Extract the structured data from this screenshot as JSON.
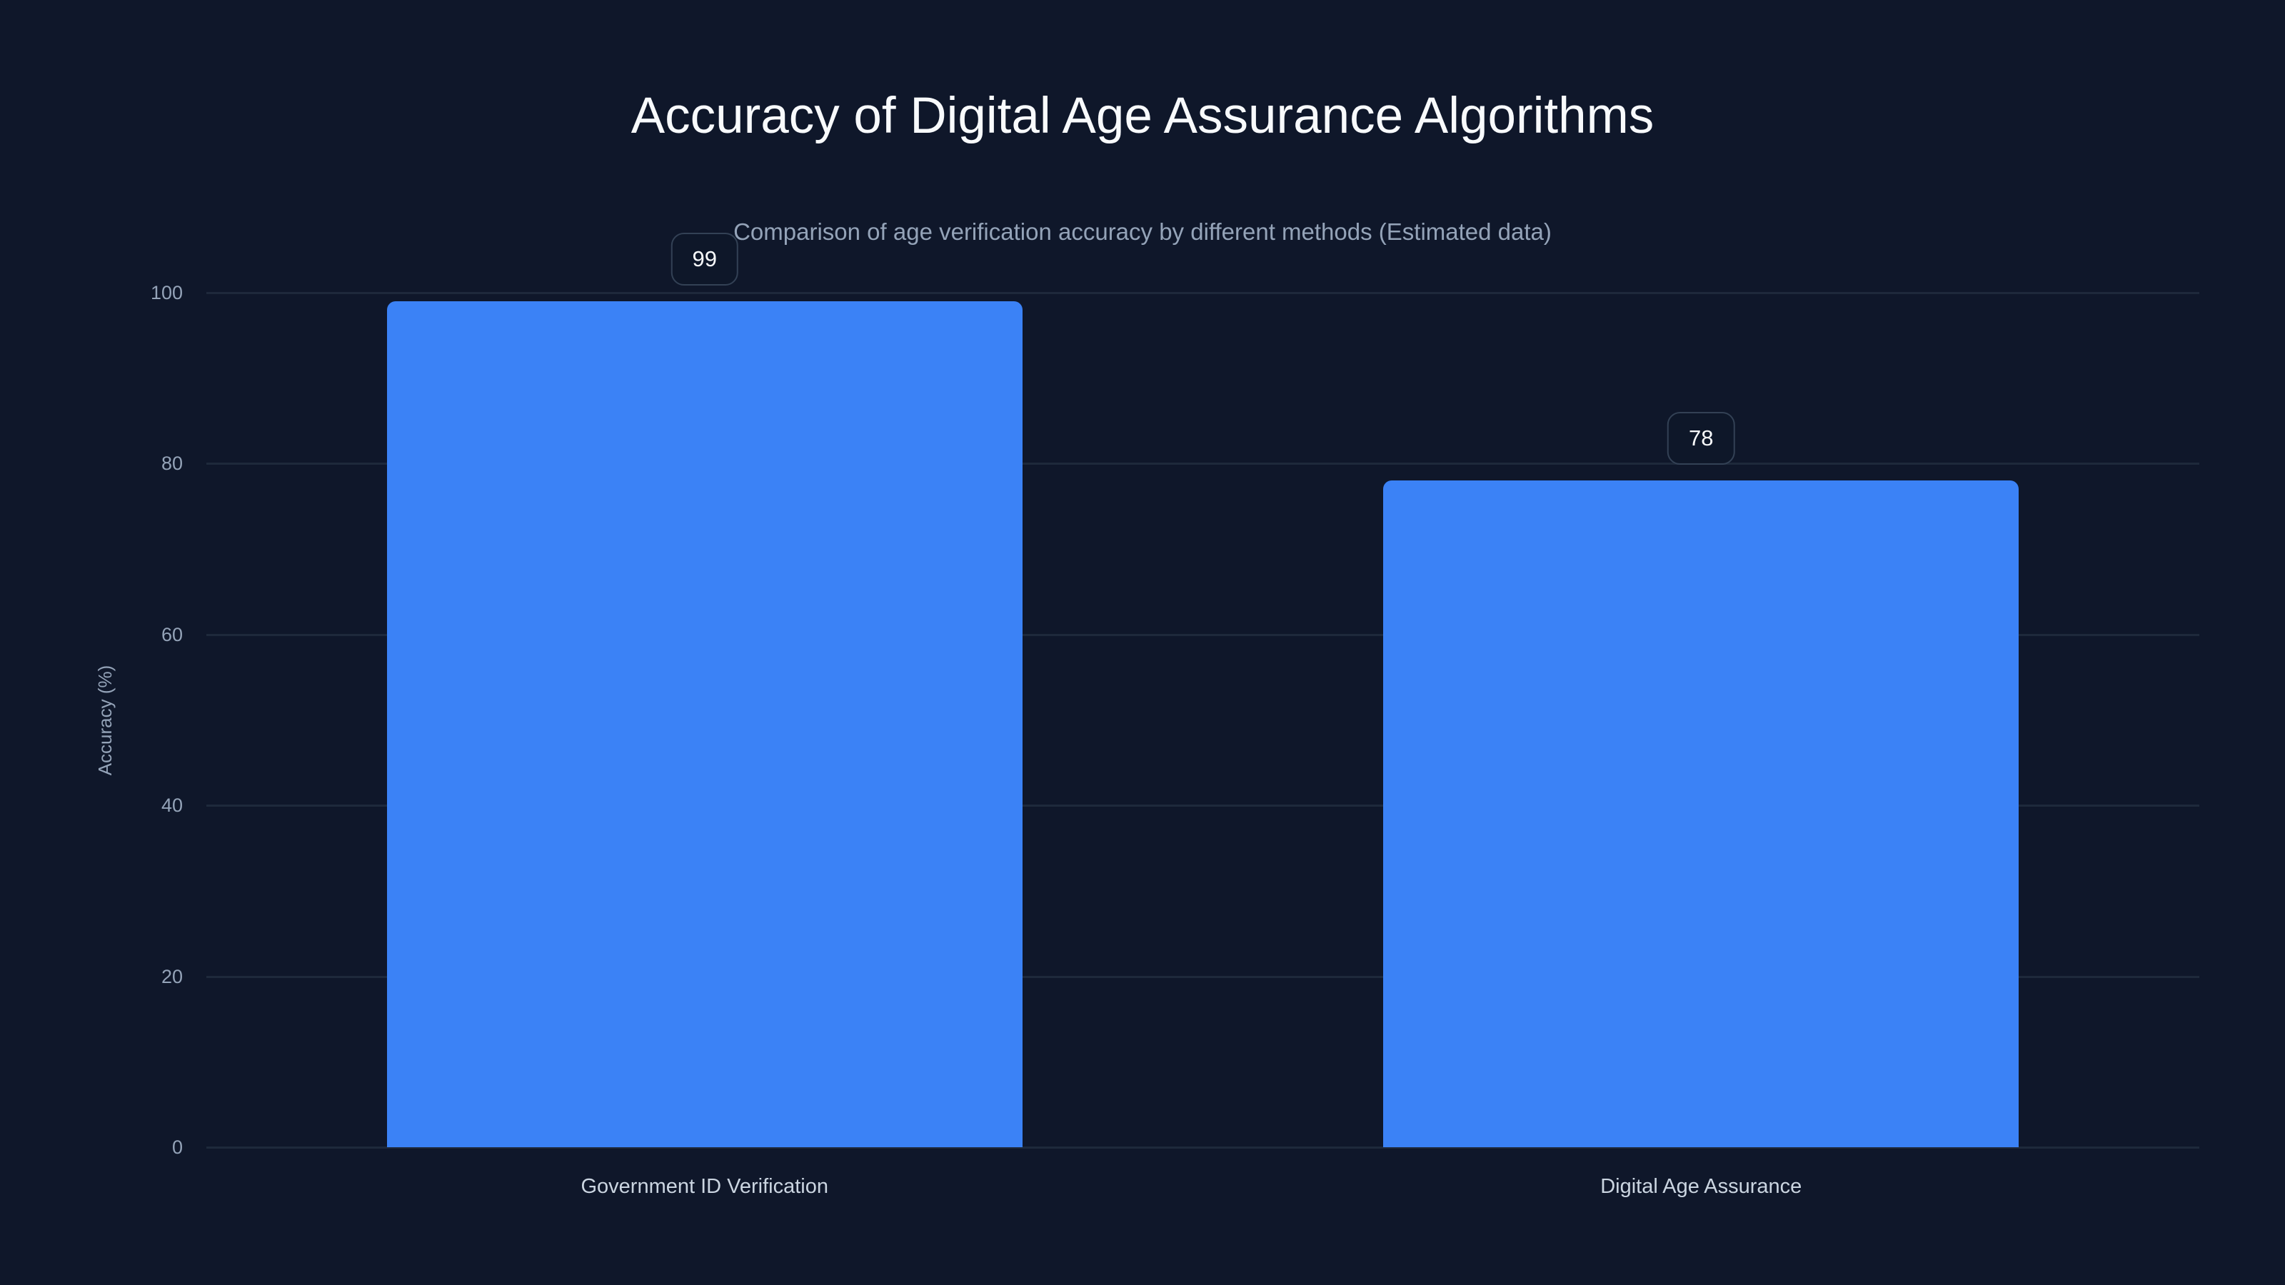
{
  "chart_data": {
    "type": "bar",
    "title": "Accuracy of Digital Age Assurance Algorithms",
    "subtitle": "Comparison of age verification accuracy by different methods (Estimated data)",
    "categories": [
      "Government ID Verification",
      "Digital Age Assurance"
    ],
    "values": [
      99,
      78
    ],
    "value_labels": [
      "99",
      "78"
    ],
    "xlabel": "",
    "ylabel": "Accuracy (%)",
    "ylim": [
      0,
      100
    ],
    "yticks": [
      0,
      20,
      40,
      60,
      80,
      100
    ],
    "ytick_labels": [
      "0",
      "20",
      "40",
      "60",
      "80",
      "100"
    ],
    "grid": true,
    "legend": null,
    "colors": {
      "background": "#0f172a",
      "bar": "#3b82f6",
      "grid": "#1e293b",
      "title": "#f8fafc",
      "muted_text": "#94a3b8",
      "category_text": "#cbd5e1"
    }
  }
}
